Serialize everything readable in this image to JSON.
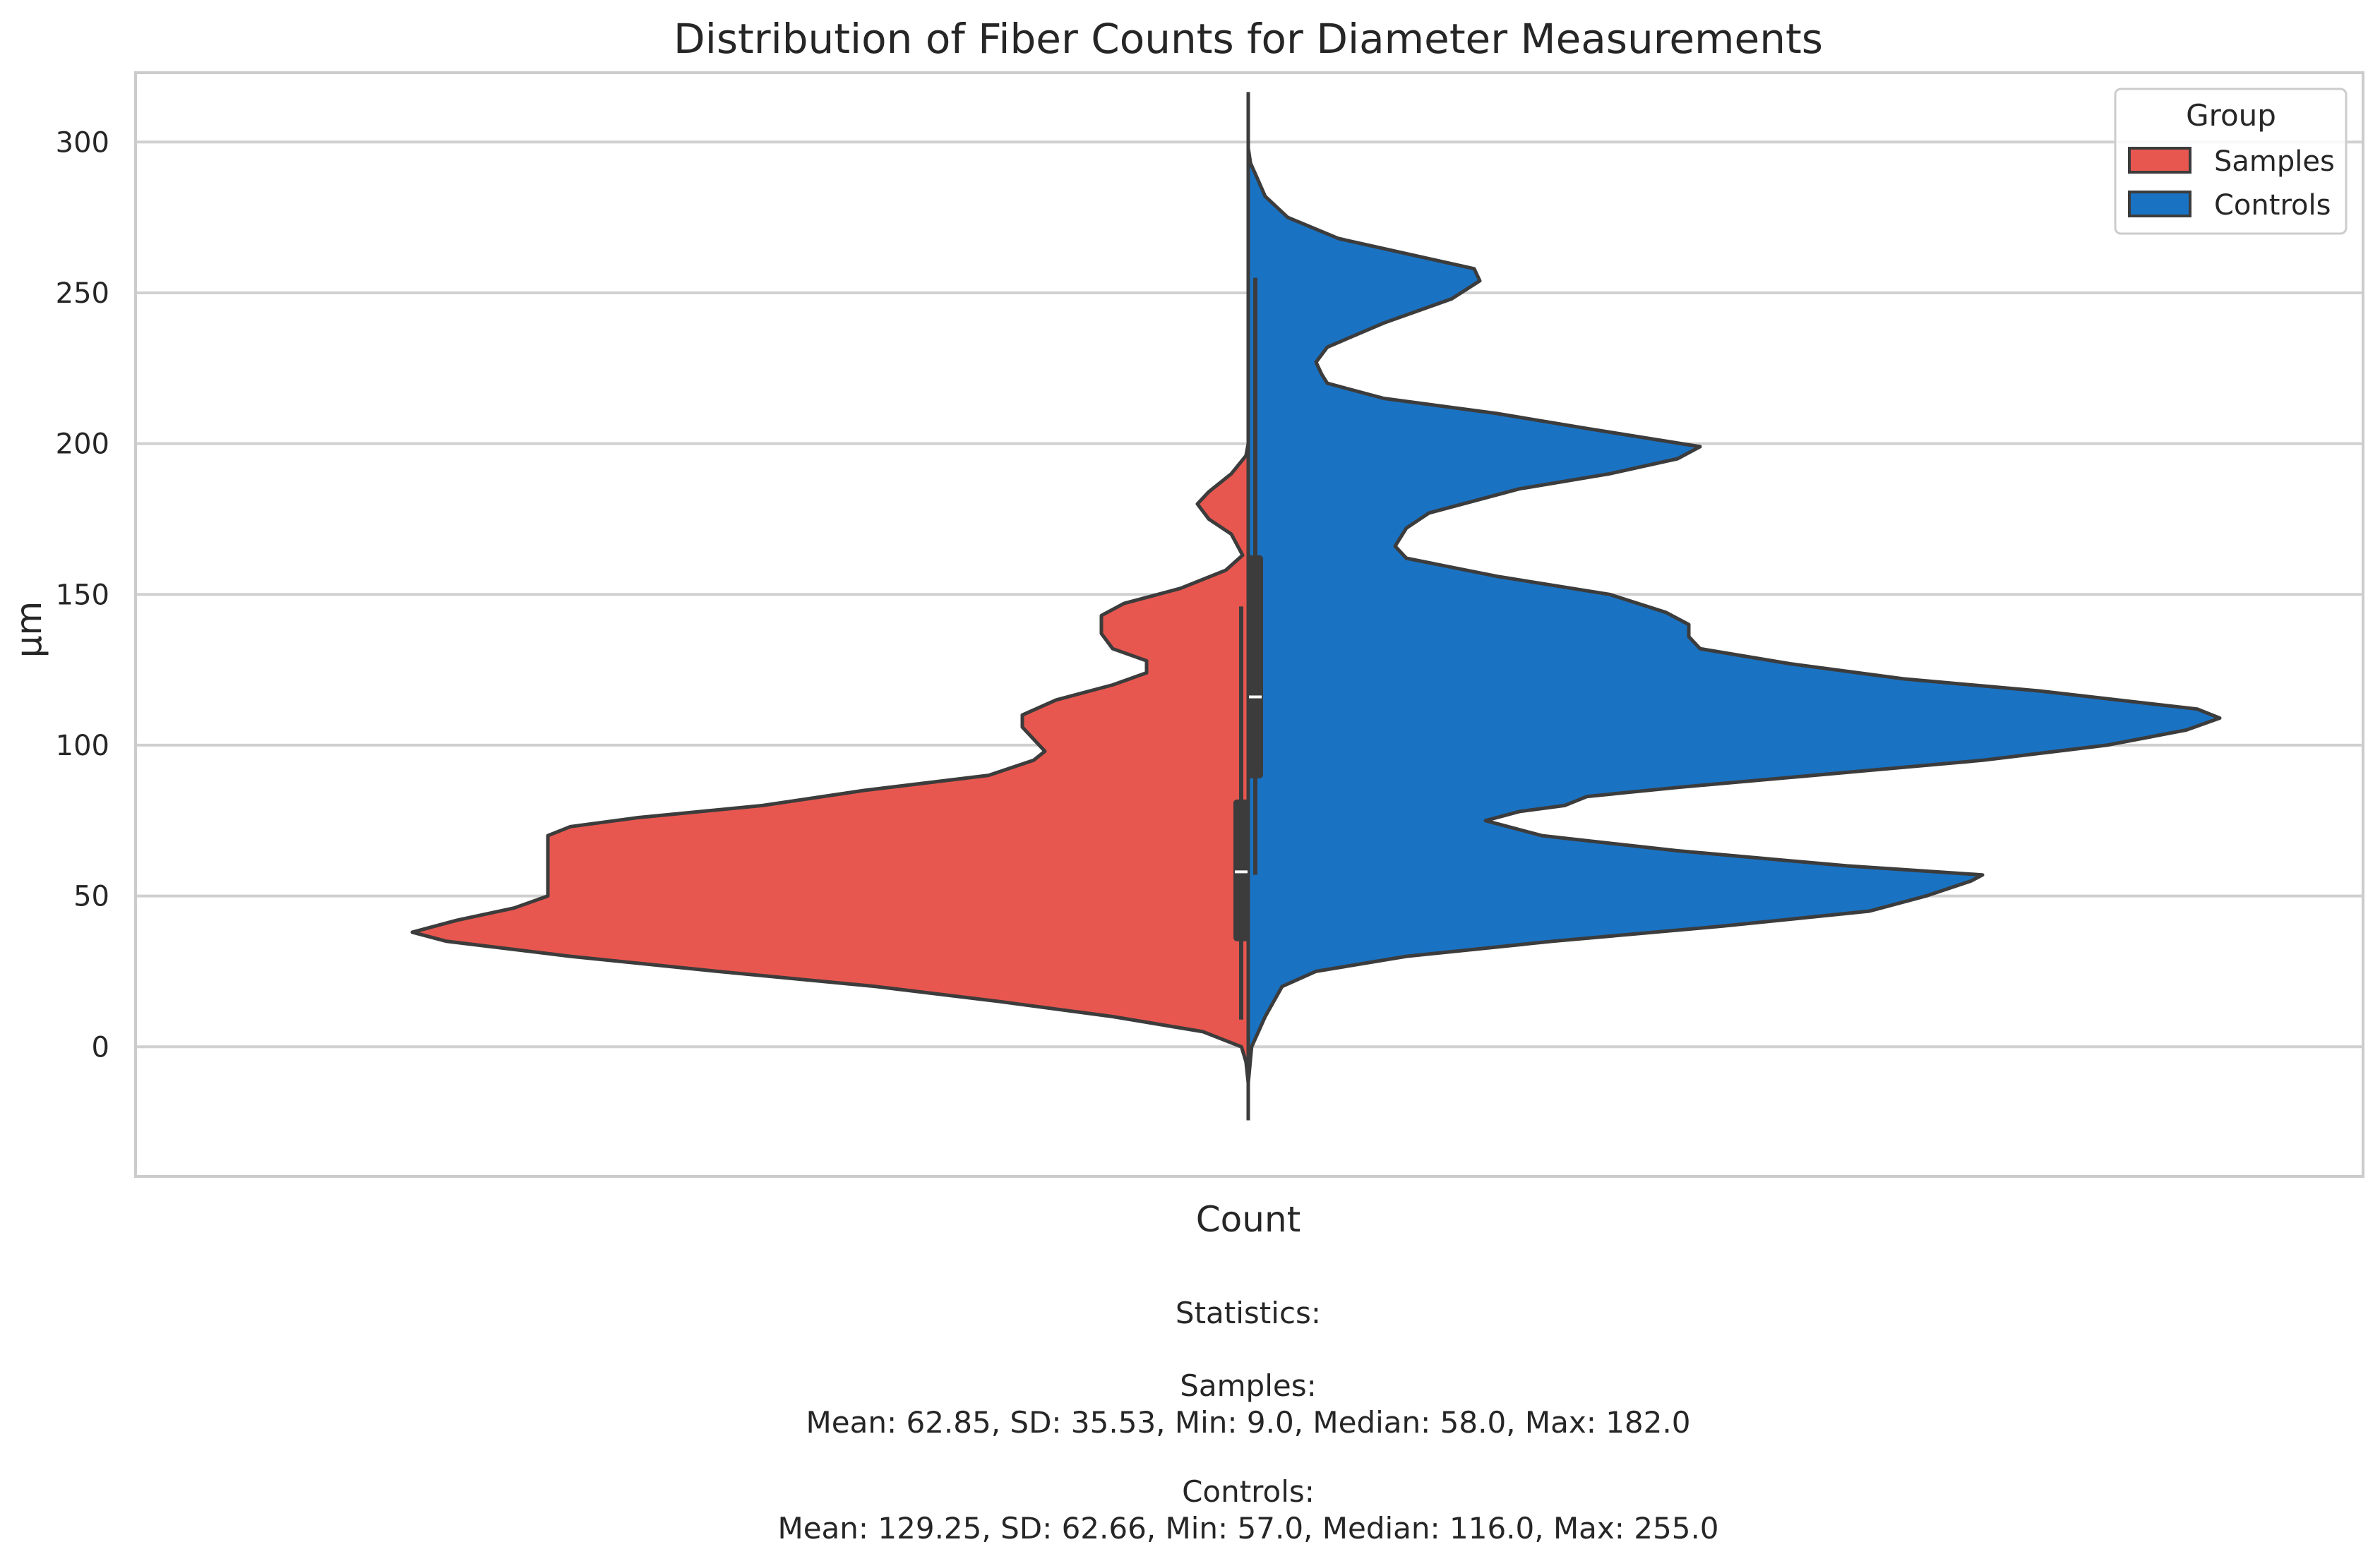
{
  "chart_data": {
    "type": "violin",
    "title": "Distribution of Fiber Counts for Diameter Measurements",
    "xlabel": "Count",
    "ylabel": "µm",
    "ylim": [
      -43,
      323
    ],
    "yticks": [
      0,
      50,
      100,
      150,
      200,
      250,
      300
    ],
    "grid": true,
    "split": true,
    "legend": {
      "title": "Group",
      "placement": "top-right",
      "entries": [
        {
          "label": "Samples",
          "color": "#e8574f"
        },
        {
          "label": "Controls",
          "color": "#1a72c2"
        }
      ]
    },
    "series": [
      {
        "name": "Samples",
        "side": "left",
        "color": "#e8574f",
        "density": [
          [
            -12,
            0
          ],
          [
            -5,
            0.2
          ],
          [
            0,
            0.6
          ],
          [
            5,
            4
          ],
          [
            10,
            12
          ],
          [
            15,
            22
          ],
          [
            20,
            33
          ],
          [
            25,
            47
          ],
          [
            30,
            60
          ],
          [
            35,
            71
          ],
          [
            38,
            74
          ],
          [
            42,
            70
          ],
          [
            46,
            65
          ],
          [
            50,
            62
          ],
          [
            55,
            62
          ],
          [
            60,
            62
          ],
          [
            63,
            62
          ],
          [
            67,
            62
          ],
          [
            70,
            62
          ],
          [
            73,
            60
          ],
          [
            76,
            54
          ],
          [
            80,
            43
          ],
          [
            85,
            34
          ],
          [
            90,
            23
          ],
          [
            95,
            19
          ],
          [
            98,
            18
          ],
          [
            102,
            19
          ],
          [
            106,
            20
          ],
          [
            110,
            20
          ],
          [
            115,
            17
          ],
          [
            120,
            12
          ],
          [
            124,
            9
          ],
          [
            128,
            9
          ],
          [
            132,
            12
          ],
          [
            137,
            13
          ],
          [
            143,
            13
          ],
          [
            147,
            11
          ],
          [
            152,
            6
          ],
          [
            158,
            2
          ],
          [
            163,
            0.5
          ],
          [
            170,
            1.5
          ],
          [
            175,
            3.5
          ],
          [
            180,
            4.5
          ],
          [
            184,
            3.5
          ],
          [
            190,
            1.5
          ],
          [
            196,
            0.2
          ],
          [
            200,
            0
          ]
        ],
        "box": {
          "q1": 35,
          "median": 58,
          "q3": 82,
          "whisker_low": 9,
          "whisker_high": 146
        }
      },
      {
        "name": "Controls",
        "side": "right",
        "color": "#1a72c2",
        "density": [
          [
            -12,
            0
          ],
          [
            0,
            0.3
          ],
          [
            10,
            1.5
          ],
          [
            20,
            3
          ],
          [
            25,
            6
          ],
          [
            30,
            14
          ],
          [
            35,
            27
          ],
          [
            40,
            42
          ],
          [
            45,
            55
          ],
          [
            50,
            60
          ],
          [
            55,
            64
          ],
          [
            57,
            65
          ],
          [
            60,
            53
          ],
          [
            65,
            38
          ],
          [
            70,
            26
          ],
          [
            75,
            21
          ],
          [
            78,
            24
          ],
          [
            80,
            28
          ],
          [
            83,
            30
          ],
          [
            86,
            38
          ],
          [
            90,
            50
          ],
          [
            95,
            65
          ],
          [
            100,
            76
          ],
          [
            105,
            83
          ],
          [
            109,
            86
          ],
          [
            112,
            84
          ],
          [
            118,
            70
          ],
          [
            122,
            58
          ],
          [
            127,
            48
          ],
          [
            132,
            40
          ],
          [
            136,
            39
          ],
          [
            140,
            39
          ],
          [
            144,
            37
          ],
          [
            150,
            32
          ],
          [
            156,
            22
          ],
          [
            162,
            14
          ],
          [
            166,
            13
          ],
          [
            172,
            14
          ],
          [
            177,
            16
          ],
          [
            185,
            24
          ],
          [
            190,
            32
          ],
          [
            195,
            38
          ],
          [
            199,
            40
          ],
          [
            205,
            30
          ],
          [
            210,
            22
          ],
          [
            215,
            12
          ],
          [
            220,
            7
          ],
          [
            223,
            6.5
          ],
          [
            227,
            6
          ],
          [
            232,
            7
          ],
          [
            240,
            12
          ],
          [
            248,
            18
          ],
          [
            254,
            20.5
          ],
          [
            258,
            20
          ],
          [
            263,
            14
          ],
          [
            268,
            8
          ],
          [
            275,
            3.5
          ],
          [
            282,
            1.5
          ],
          [
            288,
            0.8
          ],
          [
            293,
            0.2
          ],
          [
            298,
            0
          ]
        ],
        "box": {
          "q1": 89,
          "median": 116,
          "q3": 163,
          "whisker_low": 57,
          "whisker_high": 255
        }
      }
    ]
  },
  "stats": {
    "heading": "Statistics:",
    "samples_label": "Samples:",
    "samples_line": "Mean: 62.85, SD: 35.53, Min: 9.0, Median: 58.0, Max: 182.0",
    "controls_label": "Controls:",
    "controls_line": "Mean: 129.25, SD: 62.66, Min: 57.0, Median: 116.0, Max: 255.0"
  }
}
